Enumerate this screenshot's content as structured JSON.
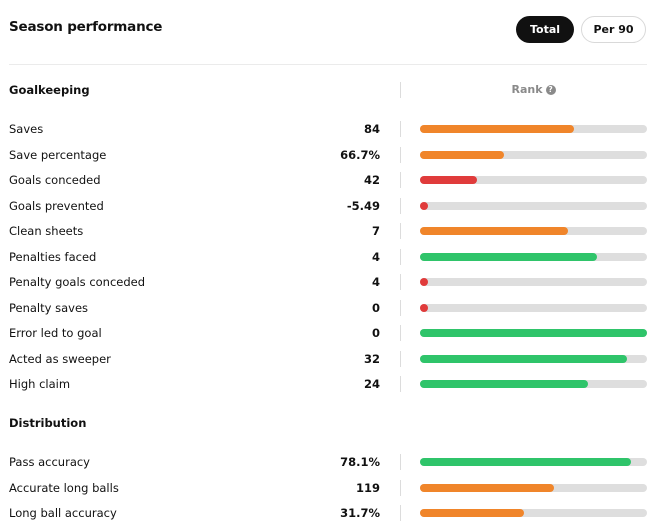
{
  "header": {
    "title": "Season performance",
    "toggle_total": "Total",
    "toggle_per90": "Per 90"
  },
  "colors": {
    "green": "#2fc46a",
    "orange": "#f0852a",
    "red": "#e03b3b",
    "track": "#dedede"
  },
  "rank_header": {
    "label": "Rank",
    "icon": "help-icon",
    "icon_glyph": "?"
  },
  "sections": [
    {
      "title": "Goalkeeping",
      "stats": [
        {
          "label": "Saves",
          "value": "84",
          "rank_fraction": 0.68,
          "color": "orange"
        },
        {
          "label": "Save percentage",
          "value": "66.7%",
          "rank_fraction": 0.37,
          "color": "orange"
        },
        {
          "label": "Goals conceded",
          "value": "42",
          "rank_fraction": 0.25,
          "color": "red"
        },
        {
          "label": "Goals prevented",
          "value": "-5.49",
          "rank_fraction": 0.03,
          "color": "red"
        },
        {
          "label": "Clean sheets",
          "value": "7",
          "rank_fraction": 0.65,
          "color": "orange"
        },
        {
          "label": "Penalties faced",
          "value": "4",
          "rank_fraction": 0.78,
          "color": "green"
        },
        {
          "label": "Penalty goals conceded",
          "value": "4",
          "rank_fraction": 0.03,
          "color": "red"
        },
        {
          "label": "Penalty saves",
          "value": "0",
          "rank_fraction": 0.03,
          "color": "red"
        },
        {
          "label": "Error led to goal",
          "value": "0",
          "rank_fraction": 1.0,
          "color": "green"
        },
        {
          "label": "Acted as sweeper",
          "value": "32",
          "rank_fraction": 0.91,
          "color": "green"
        },
        {
          "label": "High claim",
          "value": "24",
          "rank_fraction": 0.74,
          "color": "green"
        }
      ]
    },
    {
      "title": "Distribution",
      "stats": [
        {
          "label": "Pass accuracy",
          "value": "78.1%",
          "rank_fraction": 0.93,
          "color": "green"
        },
        {
          "label": "Accurate long balls",
          "value": "119",
          "rank_fraction": 0.59,
          "color": "orange"
        },
        {
          "label": "Long ball accuracy",
          "value": "31.7%",
          "rank_fraction": 0.46,
          "color": "orange"
        }
      ]
    }
  ]
}
